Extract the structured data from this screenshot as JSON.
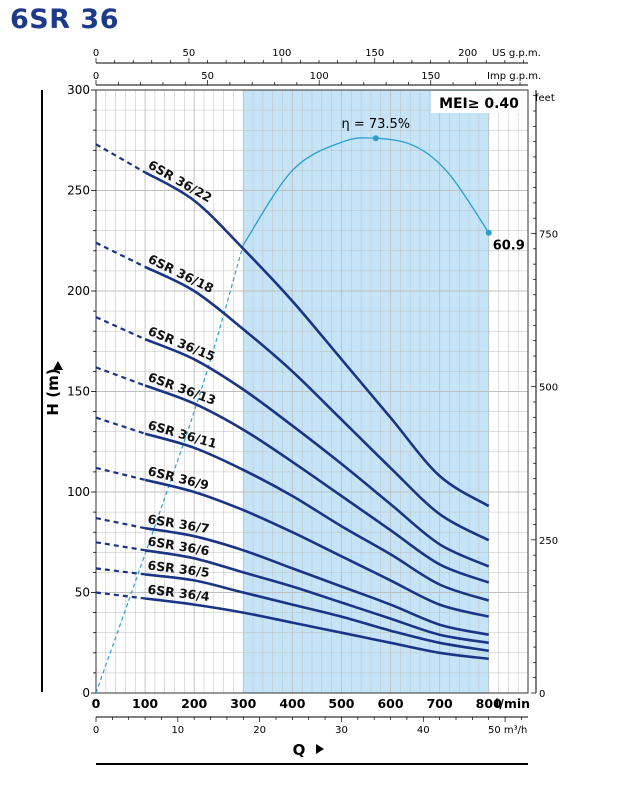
{
  "title": "6SR 36",
  "colors": {
    "curve": "#1a3585",
    "efficiency": "#2a9fd0",
    "band": "#c5e4f7",
    "grid": "#bfbfbf",
    "axis": "#000000",
    "title": "#1d3a8a"
  },
  "chart_data": {
    "type": "line",
    "title": "6SR 36",
    "xlabel": "Q",
    "ylabel": "H (m)",
    "xlim": [
      0,
      880
    ],
    "ylim": [
      0,
      300
    ],
    "grid": true,
    "flow_axes": {
      "us_gpm": {
        "label": "US g.p.m.",
        "ticks": [
          "0",
          "50",
          "100",
          "150",
          "200"
        ],
        "values": [
          0,
          50,
          100,
          150,
          200
        ]
      },
      "imp_gpm": {
        "label": "Imp g.p.m.",
        "ticks": [
          "0",
          "50",
          "100",
          "150"
        ],
        "values": [
          0,
          50,
          100,
          150
        ]
      },
      "lmin": {
        "label": "l/min",
        "ticks": [
          "0",
          "100",
          "200",
          "300",
          "400",
          "500",
          "600",
          "700",
          "800"
        ],
        "values": [
          0,
          100,
          200,
          300,
          400,
          500,
          600,
          700,
          800
        ]
      },
      "m3h": {
        "label": "m³/h",
        "ticks": [
          "0",
          "10",
          "20",
          "30",
          "40",
          "50"
        ],
        "values": [
          0,
          10,
          20,
          30,
          40,
          50
        ]
      }
    },
    "head_axes": {
      "meters": {
        "ticks": [
          "0",
          "50",
          "100",
          "150",
          "200",
          "250",
          "300"
        ],
        "values": [
          0,
          50,
          100,
          150,
          200,
          250,
          300
        ]
      },
      "feet": {
        "label": "feet",
        "ticks": [
          "0",
          "250",
          "500",
          "750"
        ],
        "values": [
          0,
          250,
          500,
          750
        ]
      }
    },
    "operating_range": [
      300,
      800
    ],
    "mei_label": "MEI≥ 0.40",
    "efficiency_curve": {
      "peak_label": "η = 73.5%",
      "end_label": "60.9",
      "points": [
        [
          0,
          0
        ],
        [
          200,
          140
        ],
        [
          300,
          223
        ],
        [
          400,
          260
        ],
        [
          500,
          274
        ],
        [
          570,
          276
        ],
        [
          650,
          272
        ],
        [
          720,
          258
        ],
        [
          800,
          229
        ]
      ]
    },
    "series": [
      {
        "name": "6SR 36/22",
        "points": [
          [
            0,
            273
          ],
          [
            100,
            259
          ],
          [
            200,
            245
          ],
          [
            300,
            221
          ],
          [
            400,
            195
          ],
          [
            500,
            166
          ],
          [
            600,
            137
          ],
          [
            700,
            108
          ],
          [
            800,
            93
          ]
        ]
      },
      {
        "name": "6SR 36/18",
        "points": [
          [
            0,
            224
          ],
          [
            100,
            212
          ],
          [
            200,
            200
          ],
          [
            300,
            181
          ],
          [
            400,
            160
          ],
          [
            500,
            136
          ],
          [
            600,
            112
          ],
          [
            700,
            89
          ],
          [
            800,
            76
          ]
        ]
      },
      {
        "name": "6SR 36/15",
        "points": [
          [
            0,
            187
          ],
          [
            100,
            176
          ],
          [
            200,
            166
          ],
          [
            300,
            151
          ],
          [
            400,
            133
          ],
          [
            500,
            114
          ],
          [
            600,
            94
          ],
          [
            700,
            74
          ],
          [
            800,
            63
          ]
        ]
      },
      {
        "name": "6SR 36/13",
        "points": [
          [
            0,
            162
          ],
          [
            100,
            153
          ],
          [
            200,
            144
          ],
          [
            300,
            131
          ],
          [
            400,
            115
          ],
          [
            500,
            98
          ],
          [
            600,
            81
          ],
          [
            700,
            64
          ],
          [
            800,
            55
          ]
        ]
      },
      {
        "name": "6SR 36/11",
        "points": [
          [
            0,
            137
          ],
          [
            100,
            129
          ],
          [
            200,
            122
          ],
          [
            300,
            111
          ],
          [
            400,
            98
          ],
          [
            500,
            83
          ],
          [
            600,
            69
          ],
          [
            700,
            54
          ],
          [
            800,
            46
          ]
        ]
      },
      {
        "name": "6SR 36/9",
        "points": [
          [
            0,
            112
          ],
          [
            100,
            106
          ],
          [
            200,
            100
          ],
          [
            300,
            91
          ],
          [
            400,
            80
          ],
          [
            500,
            68
          ],
          [
            600,
            56
          ],
          [
            700,
            44
          ],
          [
            800,
            38
          ]
        ]
      },
      {
        "name": "6SR 36/7",
        "points": [
          [
            0,
            87
          ],
          [
            100,
            82
          ],
          [
            200,
            78
          ],
          [
            300,
            71
          ],
          [
            400,
            62
          ],
          [
            500,
            53
          ],
          [
            600,
            44
          ],
          [
            700,
            34
          ],
          [
            800,
            29
          ]
        ]
      },
      {
        "name": "6SR 36/6",
        "points": [
          [
            0,
            75
          ],
          [
            100,
            71
          ],
          [
            200,
            67
          ],
          [
            300,
            60
          ],
          [
            400,
            53
          ],
          [
            500,
            45
          ],
          [
            600,
            37
          ],
          [
            700,
            29
          ],
          [
            800,
            25
          ]
        ]
      },
      {
        "name": "6SR 36/5",
        "points": [
          [
            0,
            62
          ],
          [
            100,
            59
          ],
          [
            200,
            56
          ],
          [
            300,
            50
          ],
          [
            400,
            44
          ],
          [
            500,
            38
          ],
          [
            600,
            31
          ],
          [
            700,
            25
          ],
          [
            800,
            21
          ]
        ]
      },
      {
        "name": "6SR 36/4",
        "points": [
          [
            0,
            50
          ],
          [
            100,
            47
          ],
          [
            200,
            44
          ],
          [
            300,
            40
          ],
          [
            400,
            35
          ],
          [
            500,
            30
          ],
          [
            600,
            25
          ],
          [
            700,
            20
          ],
          [
            800,
            17
          ]
        ]
      }
    ]
  }
}
